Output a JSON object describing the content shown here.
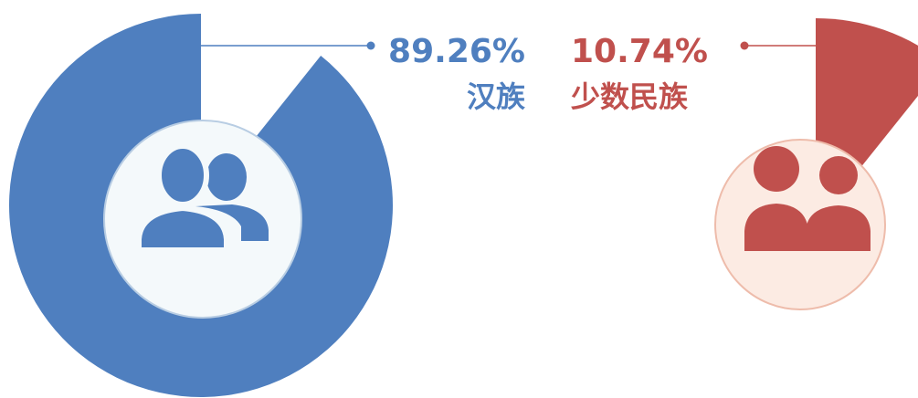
{
  "chart_data": {
    "type": "pie",
    "categories": [
      "汉族",
      "少数民族"
    ],
    "values": [
      89.26,
      10.74
    ],
    "value_labels": [
      "89.26%",
      "10.74%"
    ],
    "colors": [
      "#4f7fbf",
      "#c0504d"
    ]
  }
}
